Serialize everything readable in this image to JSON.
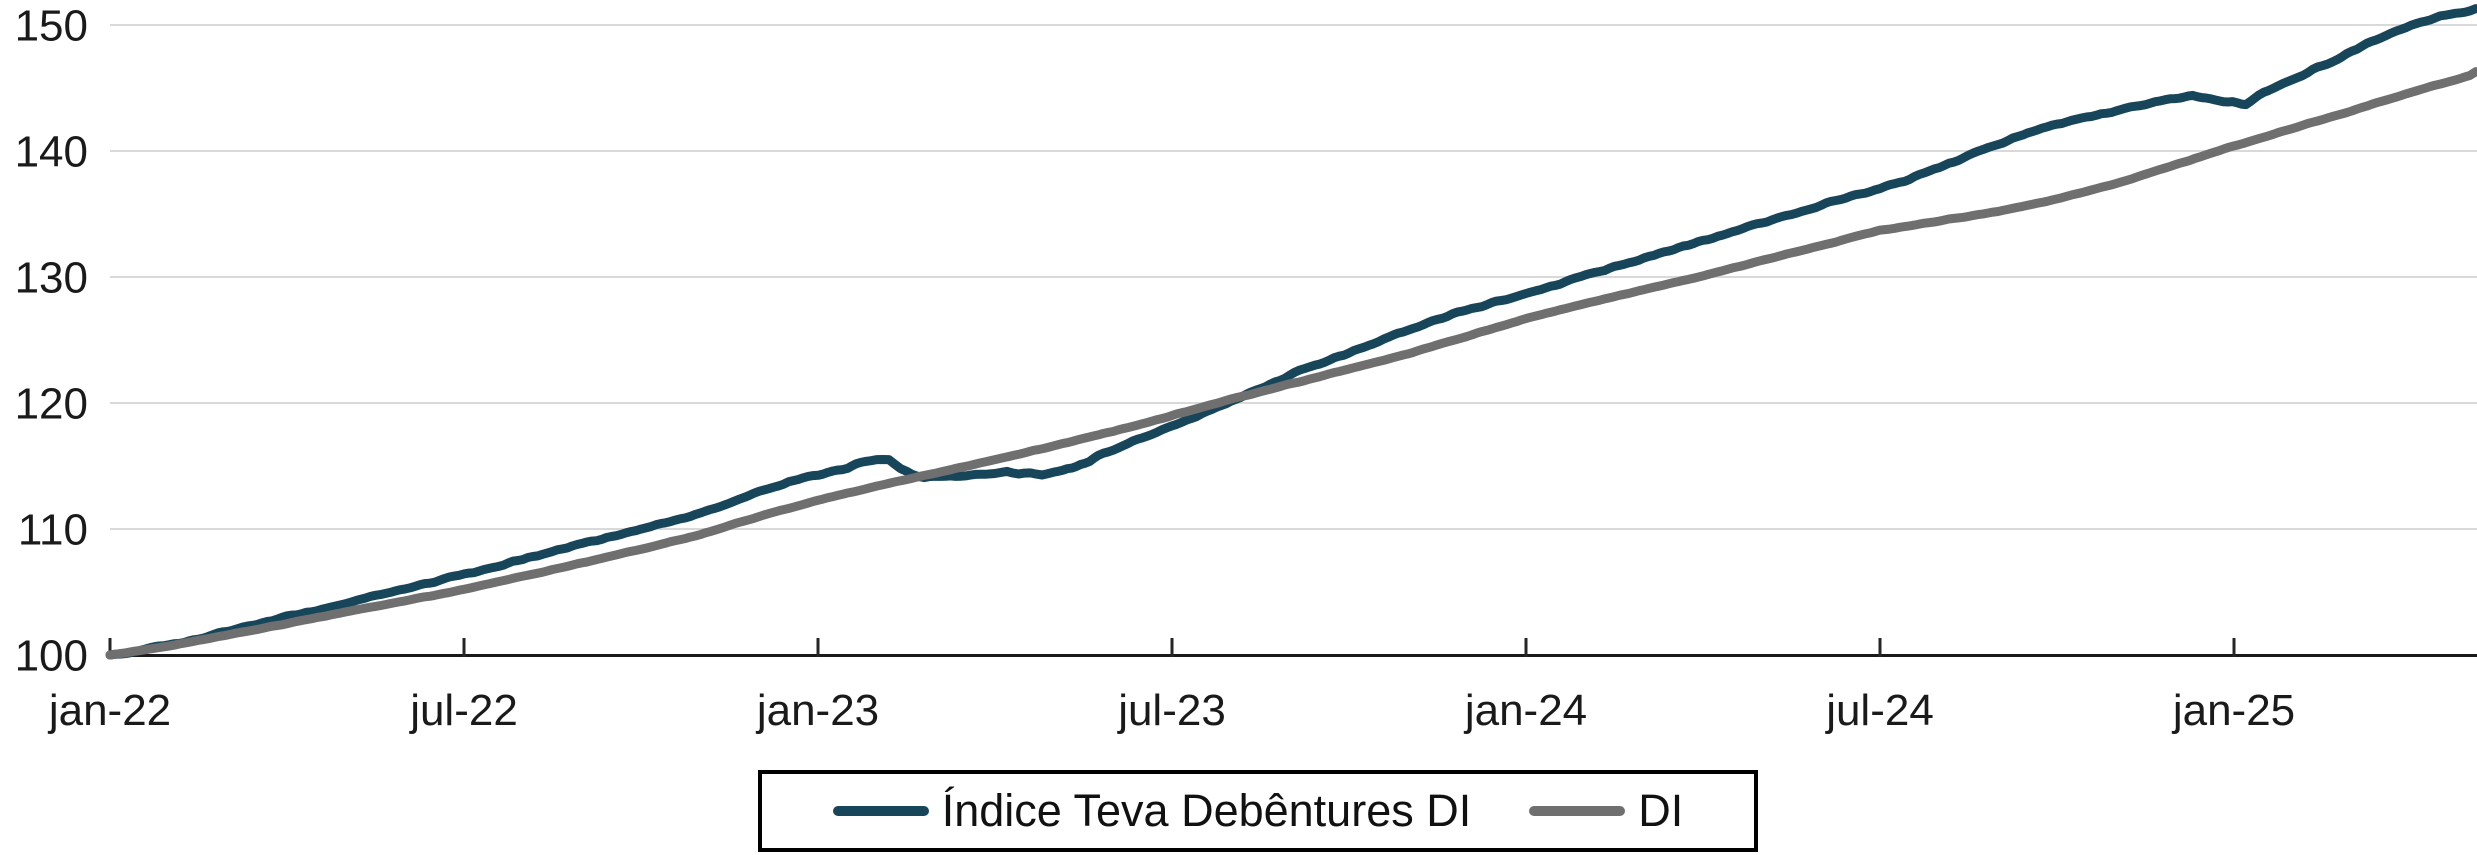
{
  "chart_data": {
    "type": "line",
    "title": "",
    "xlabel": "",
    "ylabel": "",
    "x_axis": {
      "unit": "month (pt-BR abbreviations, months since jan-2022)",
      "range": [
        0,
        40.1
      ],
      "ticks": [
        {
          "m": 0,
          "label": "jan-22"
        },
        {
          "m": 6,
          "label": "jul-22"
        },
        {
          "m": 12,
          "label": "jan-23"
        },
        {
          "m": 18,
          "label": "jul-23"
        },
        {
          "m": 24,
          "label": "jan-24"
        },
        {
          "m": 30,
          "label": "jul-24"
        },
        {
          "m": 36,
          "label": "jan-25"
        }
      ]
    },
    "y_axis": {
      "range": [
        100,
        151.6
      ],
      "ticks": [
        100,
        110,
        120,
        130,
        140,
        150
      ],
      "baseline": 100,
      "gridlines": true,
      "gridline_color": "#d9d9d9",
      "axis_color": "#1a1a1a"
    },
    "legend": {
      "position": "bottom-center",
      "border": true
    },
    "series": [
      {
        "name": "Índice Teva Debêntures DI",
        "color": "#17455A",
        "width": 9,
        "noise": 1.6,
        "points": [
          [
            0,
            100.0
          ],
          [
            0.5,
            100.35
          ],
          [
            1,
            100.8
          ],
          [
            1.5,
            101.3
          ],
          [
            2,
            101.9
          ],
          [
            2.5,
            102.45
          ],
          [
            3,
            103.0
          ],
          [
            3.5,
            103.55
          ],
          [
            4,
            104.1
          ],
          [
            4.5,
            104.7
          ],
          [
            5,
            105.3
          ],
          [
            5.5,
            105.85
          ],
          [
            6,
            106.4
          ],
          [
            6.5,
            107.0
          ],
          [
            7,
            107.6
          ],
          [
            7.5,
            108.2
          ],
          [
            8,
            108.8
          ],
          [
            8.5,
            109.4
          ],
          [
            9,
            110.0
          ],
          [
            9.5,
            110.6
          ],
          [
            10,
            111.2
          ],
          [
            10.5,
            112.0
          ],
          [
            11,
            113.0
          ],
          [
            11.5,
            113.7
          ],
          [
            12,
            114.3
          ],
          [
            12.5,
            114.9
          ],
          [
            12.8,
            115.3
          ],
          [
            13,
            115.5
          ],
          [
            13.2,
            115.4
          ],
          [
            13.4,
            114.8
          ],
          [
            13.6,
            114.3
          ],
          [
            13.8,
            114.1
          ],
          [
            14,
            114.15
          ],
          [
            14.25,
            114.3
          ],
          [
            14.5,
            114.2
          ],
          [
            14.75,
            114.35
          ],
          [
            15,
            114.45
          ],
          [
            15.2,
            114.55
          ],
          [
            15.4,
            114.35
          ],
          [
            15.6,
            114.5
          ],
          [
            15.8,
            114.3
          ],
          [
            16,
            114.55
          ],
          [
            16.3,
            114.85
          ],
          [
            16.6,
            115.4
          ],
          [
            17,
            116.3
          ],
          [
            17.5,
            117.25
          ],
          [
            18,
            118.2
          ],
          [
            18.5,
            119.15
          ],
          [
            19,
            120.1
          ],
          [
            19.5,
            121.15
          ],
          [
            20,
            122.2
          ],
          [
            20.5,
            123.1
          ],
          [
            21,
            124.0
          ],
          [
            21.5,
            124.9
          ],
          [
            22,
            125.8
          ],
          [
            22.5,
            126.6
          ],
          [
            23,
            127.4
          ],
          [
            23.5,
            128.05
          ],
          [
            24,
            128.7
          ],
          [
            24.5,
            129.4
          ],
          [
            25,
            130.1
          ],
          [
            25.5,
            130.8
          ],
          [
            26,
            131.5
          ],
          [
            26.5,
            132.2
          ],
          [
            27,
            132.9
          ],
          [
            27.5,
            133.6
          ],
          [
            28,
            134.3
          ],
          [
            28.5,
            135.0
          ],
          [
            29,
            135.7
          ],
          [
            29.5,
            136.35
          ],
          [
            30,
            137.0
          ],
          [
            30.5,
            137.8
          ],
          [
            31,
            138.7
          ],
          [
            31.5,
            139.65
          ],
          [
            32,
            140.6
          ],
          [
            32.5,
            141.4
          ],
          [
            33,
            142.1
          ],
          [
            33.5,
            142.7
          ],
          [
            34,
            143.2
          ],
          [
            34.5,
            143.75
          ],
          [
            35,
            144.2
          ],
          [
            35.3,
            144.4
          ],
          [
            35.6,
            144.2
          ],
          [
            35.9,
            143.85
          ],
          [
            36.2,
            143.8
          ],
          [
            36.5,
            144.6
          ],
          [
            37,
            145.7
          ],
          [
            37.5,
            146.8
          ],
          [
            38,
            147.9
          ],
          [
            38.5,
            149.0
          ],
          [
            39,
            150.0
          ],
          [
            39.5,
            150.7
          ],
          [
            40,
            151.15
          ],
          [
            40.1,
            151.3
          ]
        ]
      },
      {
        "name": "DI",
        "color": "#6F6F6F",
        "width": 9,
        "noise": 0.5,
        "points": [
          [
            0,
            100.0
          ],
          [
            1,
            100.7
          ],
          [
            2,
            101.6
          ],
          [
            3,
            102.5
          ],
          [
            4,
            103.4
          ],
          [
            5,
            104.3
          ],
          [
            6,
            105.2
          ],
          [
            7,
            106.25
          ],
          [
            8,
            107.3
          ],
          [
            9,
            108.4
          ],
          [
            10,
            109.55
          ],
          [
            11,
            111.0
          ],
          [
            12,
            112.3
          ],
          [
            13,
            113.4
          ],
          [
            14,
            114.45
          ],
          [
            15,
            115.5
          ],
          [
            16,
            116.6
          ],
          [
            17,
            117.75
          ],
          [
            18,
            119.0
          ],
          [
            19,
            120.3
          ],
          [
            20,
            121.5
          ],
          [
            21,
            122.7
          ],
          [
            22,
            123.9
          ],
          [
            23,
            125.3
          ],
          [
            24,
            126.7
          ],
          [
            25,
            127.9
          ],
          [
            26,
            129.0
          ],
          [
            27,
            130.1
          ],
          [
            28,
            131.3
          ],
          [
            29,
            132.5
          ],
          [
            30,
            133.7
          ],
          [
            31,
            134.45
          ],
          [
            32,
            135.2
          ],
          [
            33,
            136.2
          ],
          [
            34,
            137.4
          ],
          [
            35,
            138.9
          ],
          [
            36,
            140.4
          ],
          [
            37,
            141.8
          ],
          [
            38,
            143.2
          ],
          [
            39,
            144.65
          ],
          [
            40,
            146.0
          ],
          [
            40.1,
            146.3
          ]
        ]
      }
    ]
  }
}
